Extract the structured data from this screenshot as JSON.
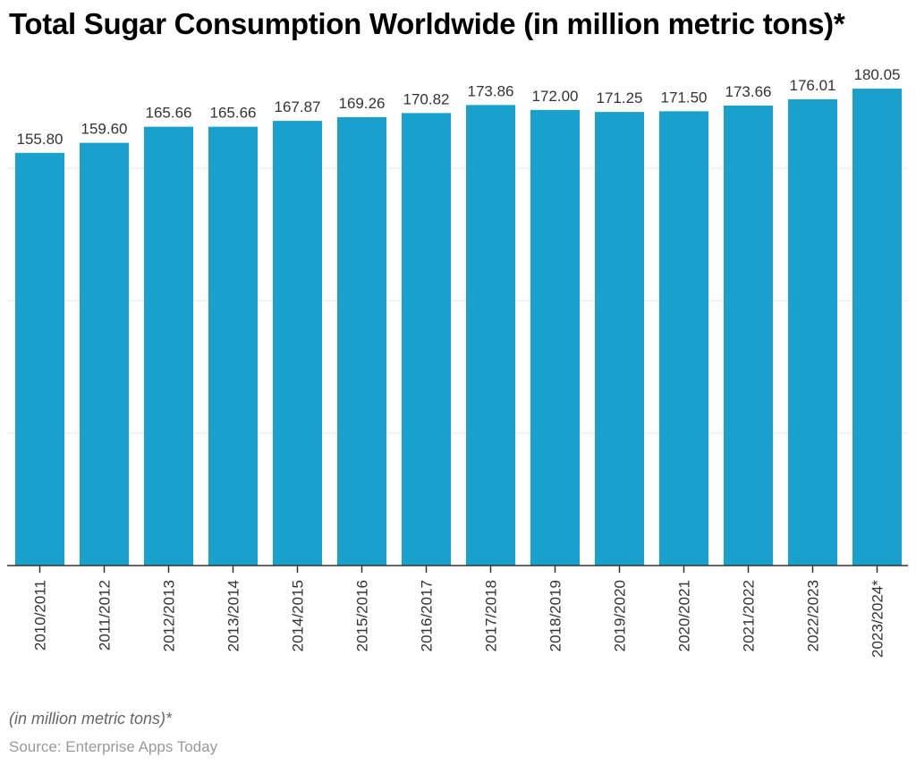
{
  "chart_data": {
    "type": "bar",
    "title": "Total Sugar Consumption Worldwide (in million metric tons)*",
    "categories": [
      "2010/2011",
      "2011/2012",
      "2012/2013",
      "2013/2014",
      "2014/2015",
      "2015/2016",
      "2016/2017",
      "2017/2018",
      "2018/2019",
      "2019/2020",
      "2020/2021",
      "2021/2022",
      "2022/2023",
      "2023/2024*"
    ],
    "values": [
      155.8,
      159.6,
      165.66,
      165.66,
      167.87,
      169.26,
      170.82,
      173.86,
      172.0,
      171.25,
      171.5,
      173.66,
      176.01,
      180.05
    ],
    "data_labels": [
      "155.80",
      "159.60",
      "165.66",
      "165.66",
      "167.87",
      "169.26",
      "170.82",
      "173.86",
      "172.00",
      "171.25",
      "171.50",
      "173.66",
      "176.01",
      "180.05"
    ],
    "ylim": [
      0,
      200
    ],
    "grid_values": [
      50,
      100,
      150
    ],
    "grid": true,
    "bar_color": "#18a1cd",
    "xlabel": "",
    "ylabel": ""
  },
  "note": "(in million metric tons)*",
  "source": "Source: Enterprise Apps Today"
}
